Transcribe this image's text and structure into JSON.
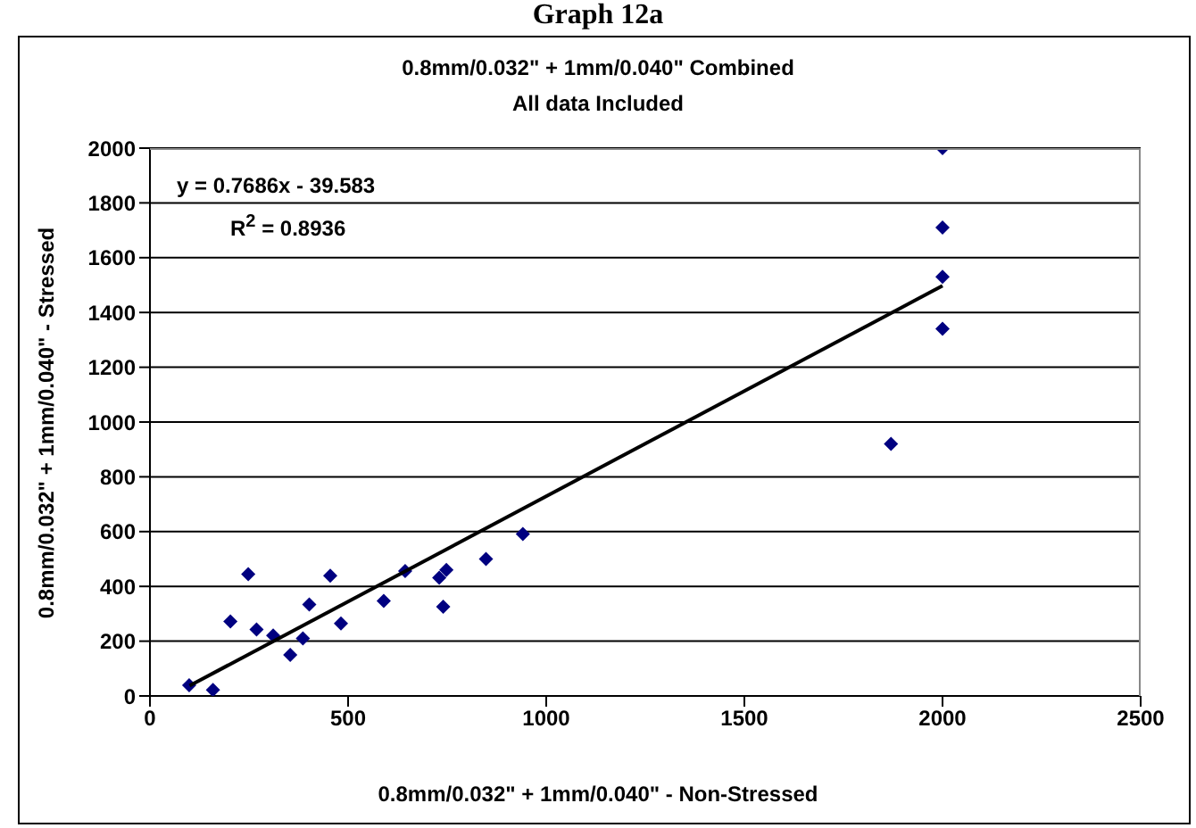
{
  "chart_data": {
    "type": "scatter",
    "title": "Graph 12a",
    "subtitle": "0.8mm/0.032\" + 1mm/0.040\" Combined\nAll data Included",
    "xlabel": "0.8mm/0.032\" + 1mm/0.040\" - Non-Stressed",
    "ylabel": "0.8mm/0.032\" + 1mm/0.040\" - Stressed",
    "annotations": [
      "y = 0.7686x - 39.583",
      "R$^{2}$ = 0.8936"
    ],
    "series": [
      {
        "color": "#000080",
        "marker": "diamond",
        "x": [
          99,
          159,
          203,
          248,
          269,
          311,
          354,
          386,
          402,
          455,
          482,
          590,
          644,
          730,
          748,
          740,
          848,
          941,
          2000,
          2000,
          2000,
          2000,
          1870
        ],
        "values": [
          39,
          22,
          272,
          445,
          243,
          221,
          150,
          210,
          334,
          439,
          265,
          347,
          456,
          432,
          460,
          326,
          500,
          591,
          2000,
          1710,
          1530,
          1340,
          920
        ]
      },
      {
        "type": "line",
        "color": "#000000",
        "marker": "none",
        "x": [
          100,
          2000
        ],
        "values": [
          37.3,
          1497.6
        ]
      }
    ],
    "xlim": [
      0,
      2500
    ],
    "xticks": [
      0,
      500,
      1000,
      1500,
      2000,
      2500
    ],
    "ylim": [
      0,
      2000
    ],
    "yticks": [
      0,
      200,
      400,
      600,
      800,
      1000,
      1200,
      1400,
      1600,
      1800,
      2000
    ],
    "grid": "y",
    "legend": false
  }
}
